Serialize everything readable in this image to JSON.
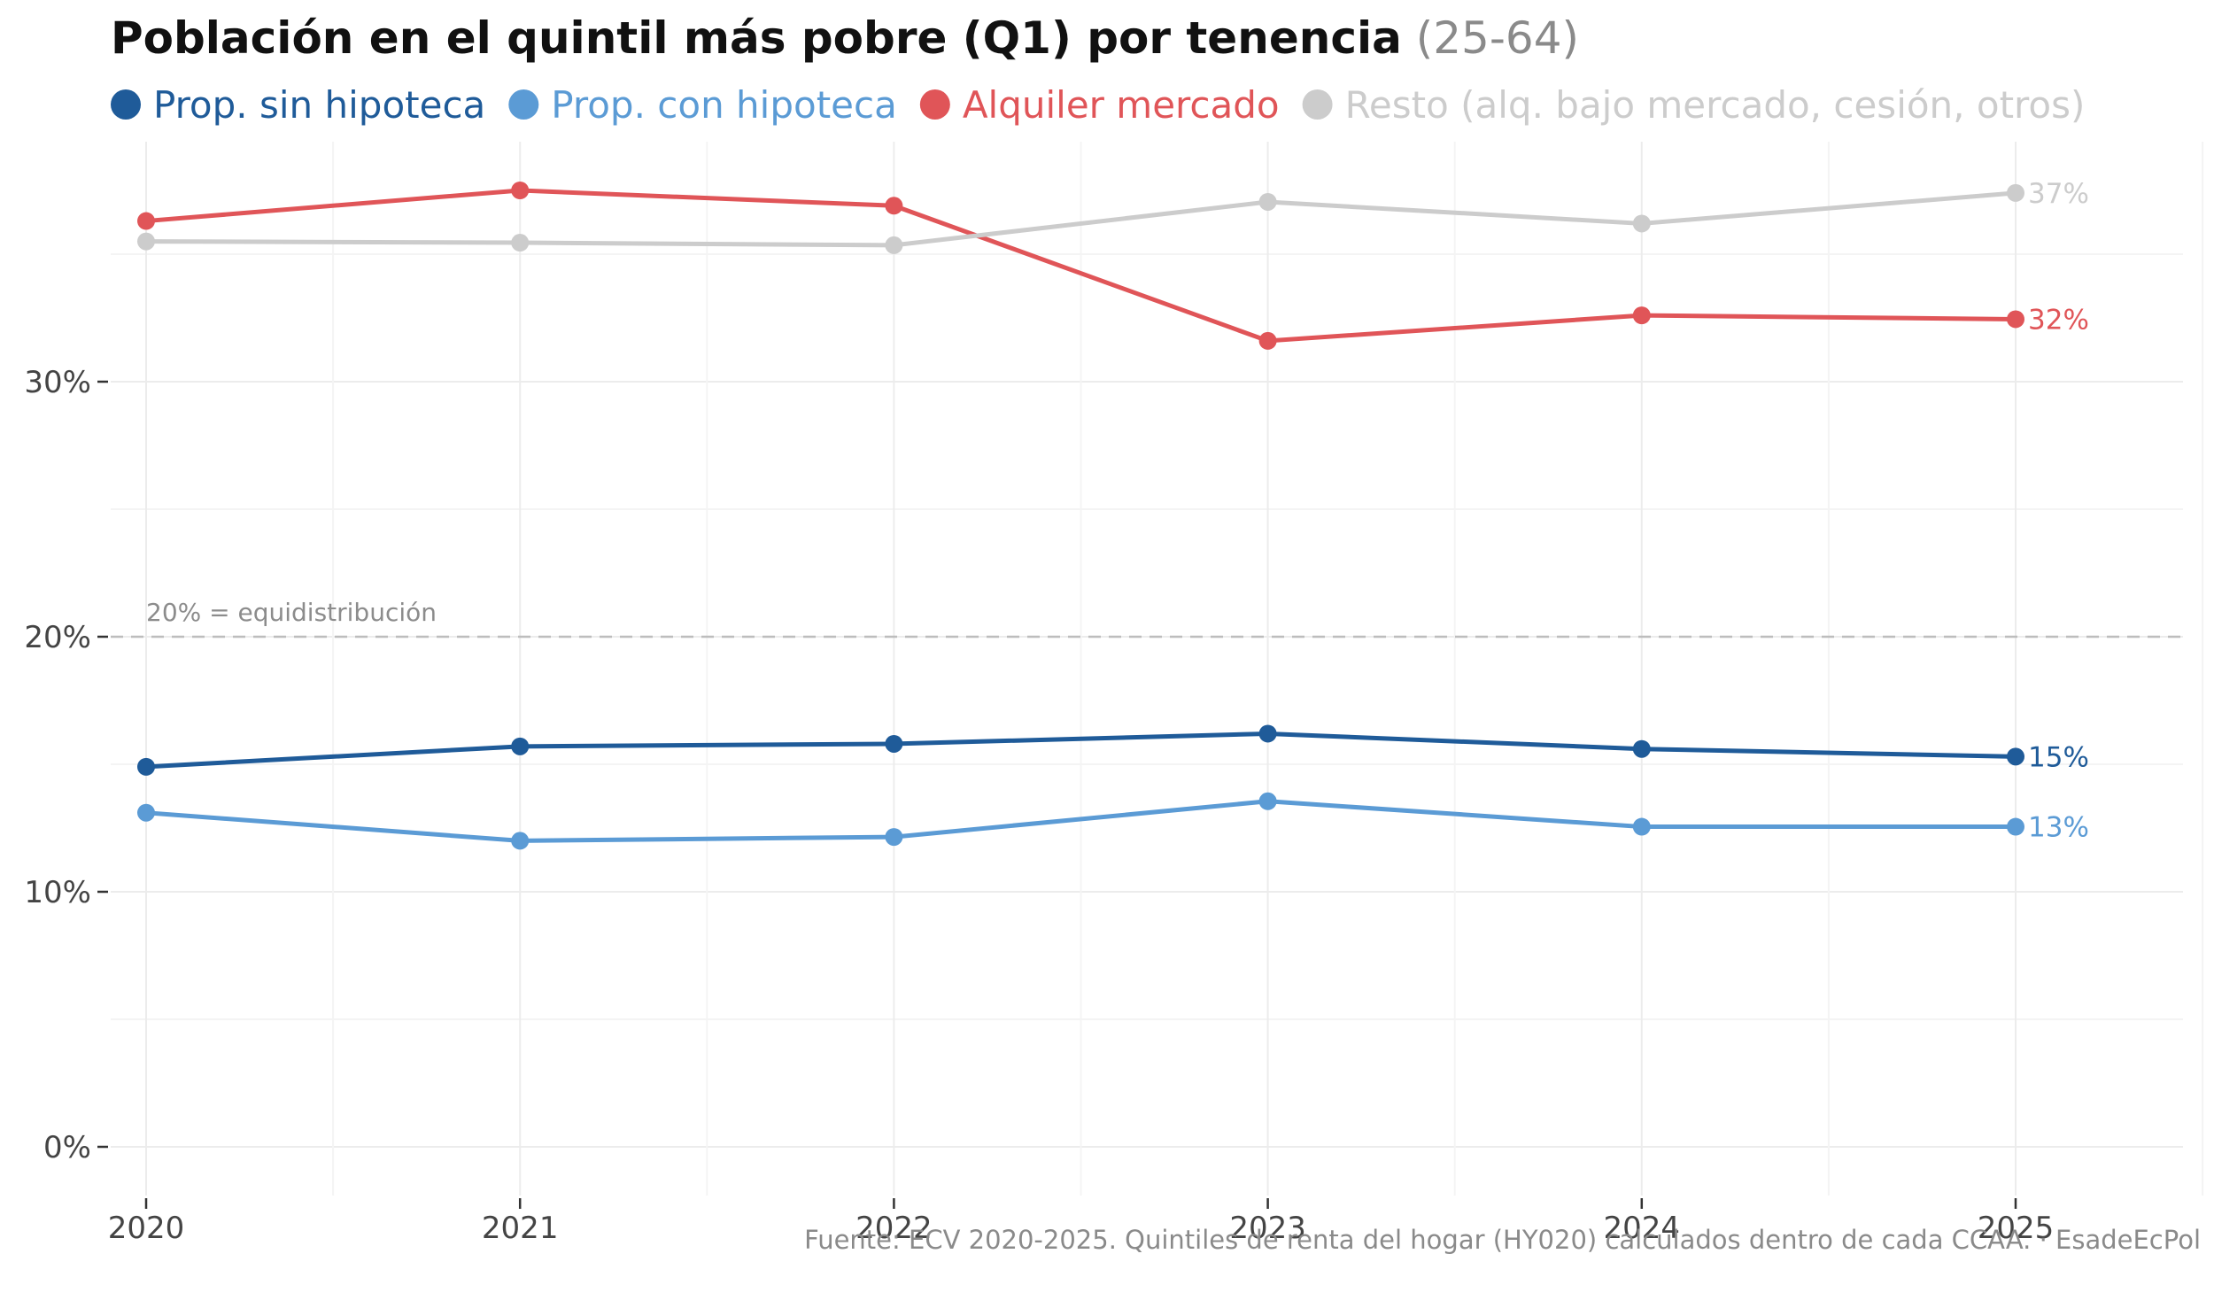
{
  "chart_data": {
    "type": "line",
    "title": "Población en el quintil más pobre (Q1) por tenencia",
    "title_suffix": "(25-64)",
    "caption": "Fuente: ECV 2020-2025. Quintiles de renta del hogar (HY020) calculados dentro de cada CCAA. · EsadeEcPol",
    "x": [
      2020,
      2021,
      2022,
      2023,
      2024,
      2025
    ],
    "x_ticks": [
      "2020",
      "2021",
      "2022",
      "2023",
      "2024",
      "2025"
    ],
    "y_ticks": [
      "0%",
      "10%",
      "20%",
      "30%"
    ],
    "y_tick_values": [
      0,
      10,
      20,
      30
    ],
    "xlim": [
      2020,
      2025.45
    ],
    "ylim": [
      -1.8,
      39.3
    ],
    "legend_position": "top-left",
    "reference_line": {
      "value": 20,
      "label": "20% = equidistribución"
    },
    "series": [
      {
        "name": "Prop. sin hipoteca",
        "color": "#1f5b99",
        "values": [
          14.9,
          15.7,
          15.8,
          16.2,
          15.6,
          15.3
        ],
        "end_label": "15%"
      },
      {
        "name": "Prop. con hipoteca",
        "color": "#5b9bd5",
        "values": [
          13.1,
          12.0,
          12.15,
          13.55,
          12.55,
          12.55
        ],
        "end_label": "13%"
      },
      {
        "name": "Alquiler mercado",
        "color": "#e05558",
        "values": [
          36.3,
          37.5,
          36.9,
          31.6,
          32.6,
          32.45
        ],
        "end_label": "32%"
      },
      {
        "name": "Resto (alq. bajo mercado, cesión, otros)",
        "color": "#cccccc",
        "values": [
          35.5,
          35.45,
          35.35,
          37.05,
          36.2,
          37.4
        ],
        "end_label": "37%"
      }
    ]
  }
}
